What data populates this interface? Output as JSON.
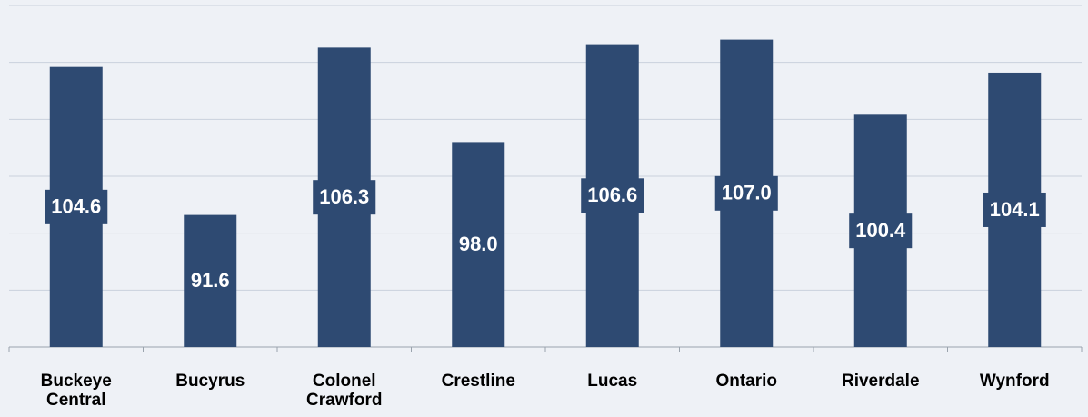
{
  "chart_data": {
    "type": "bar",
    "categories": [
      "Buckeye Central",
      "Bucyrus",
      "Colonel Crawford",
      "Crestline",
      "Lucas",
      "Ontario",
      "Riverdale",
      "Wynford"
    ],
    "values": [
      104.6,
      91.6,
      106.3,
      98.0,
      106.6,
      107.0,
      100.4,
      104.1
    ],
    "value_labels": [
      "104.6",
      "91.6",
      "106.3",
      "98.0",
      "106.6",
      "107.0",
      "100.4",
      "104.1"
    ],
    "color": "#2e4a72",
    "ylim": [
      80,
      110
    ],
    "yticks": [
      80,
      85,
      90,
      95,
      100,
      105,
      110
    ],
    "grid": true
  }
}
